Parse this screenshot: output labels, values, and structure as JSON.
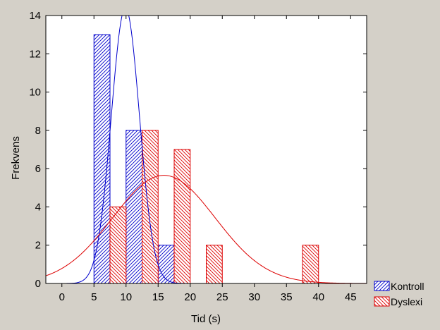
{
  "chart_data": {
    "type": "bar",
    "title": "",
    "xlabel": "Tid (s)",
    "ylabel": "Frekvens",
    "xlim": [
      -2.5,
      47.5
    ],
    "ylim": [
      0,
      14
    ],
    "xticks": [
      0,
      5,
      10,
      15,
      20,
      25,
      30,
      35,
      40,
      45
    ],
    "yticks": [
      0,
      2,
      4,
      6,
      8,
      10,
      12,
      14
    ],
    "grid": false,
    "legend_position": "bottom-right",
    "bin_width": 2.5,
    "series": [
      {
        "name": "Kontroll",
        "color": "#0000cc",
        "hatch": "diagonal-up",
        "bins": [
          {
            "x_start": 5,
            "x_end": 7.5,
            "count": 13
          },
          {
            "x_start": 10,
            "x_end": 12.5,
            "count": 8
          },
          {
            "x_start": 15,
            "x_end": 17.5,
            "count": 2
          }
        ],
        "normal_fit": {
          "mean": 9.9,
          "sd": 2.2,
          "peak_count": 14.4
        }
      },
      {
        "name": "Dyslexi",
        "color": "#dd0000",
        "hatch": "diagonal-down",
        "bins": [
          {
            "x_start": 7.5,
            "x_end": 10,
            "count": 4
          },
          {
            "x_start": 12.5,
            "x_end": 15,
            "count": 8
          },
          {
            "x_start": 17.5,
            "x_end": 20,
            "count": 7
          },
          {
            "x_start": 22.5,
            "x_end": 25,
            "count": 2
          },
          {
            "x_start": 37.5,
            "x_end": 40,
            "count": 2
          }
        ],
        "normal_fit": {
          "mean": 15.9,
          "sd": 8.0,
          "peak_count": 5.65
        }
      }
    ]
  }
}
